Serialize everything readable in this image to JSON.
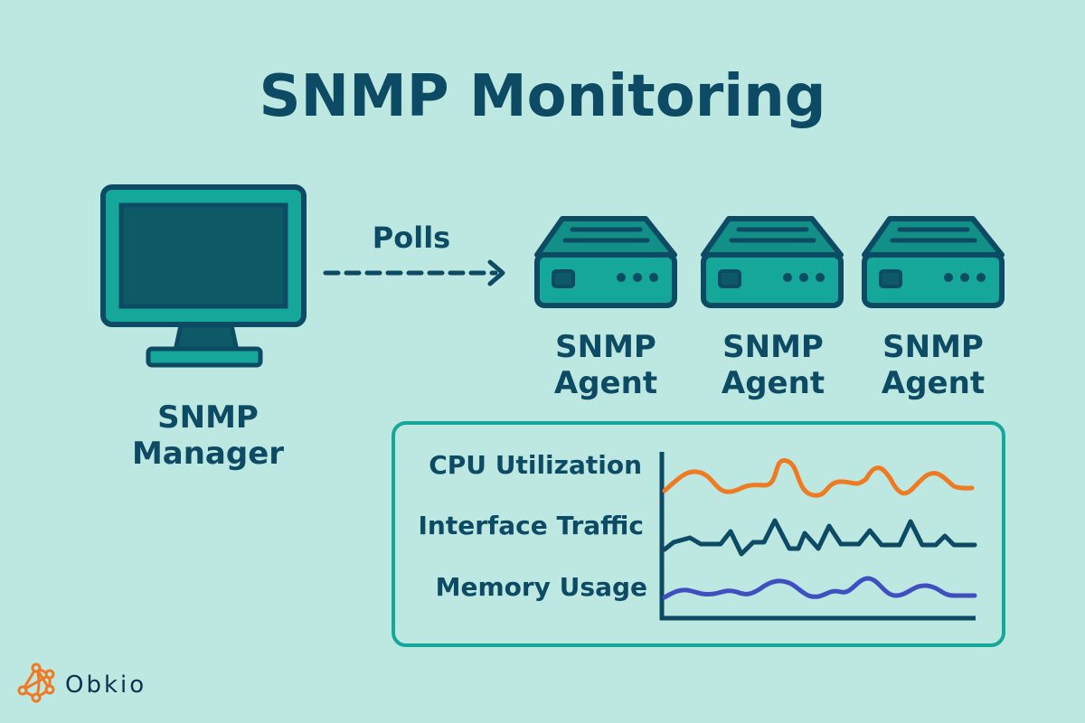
{
  "title": "SNMP Monitoring",
  "manager": {
    "label_line1": "SNMP",
    "label_line2": "Manager"
  },
  "arrow_label": "Polls",
  "agents": [
    {
      "label_line1": "SNMP",
      "label_line2": "Agent"
    },
    {
      "label_line1": "SNMP",
      "label_line2": "Agent"
    },
    {
      "label_line1": "SNMP",
      "label_line2": "Agent"
    }
  ],
  "metrics": [
    "CPU Utilization",
    "Interface Traffic",
    "Memory Usage"
  ],
  "brand": "Obkio",
  "colors": {
    "background": "#bce8e1",
    "dark": "#0d4a63",
    "teal": "#15a89a",
    "cpu": "#f07a22",
    "traffic": "#0d4a63",
    "memory": "#3f4fc0",
    "brand": "#f07a22"
  }
}
